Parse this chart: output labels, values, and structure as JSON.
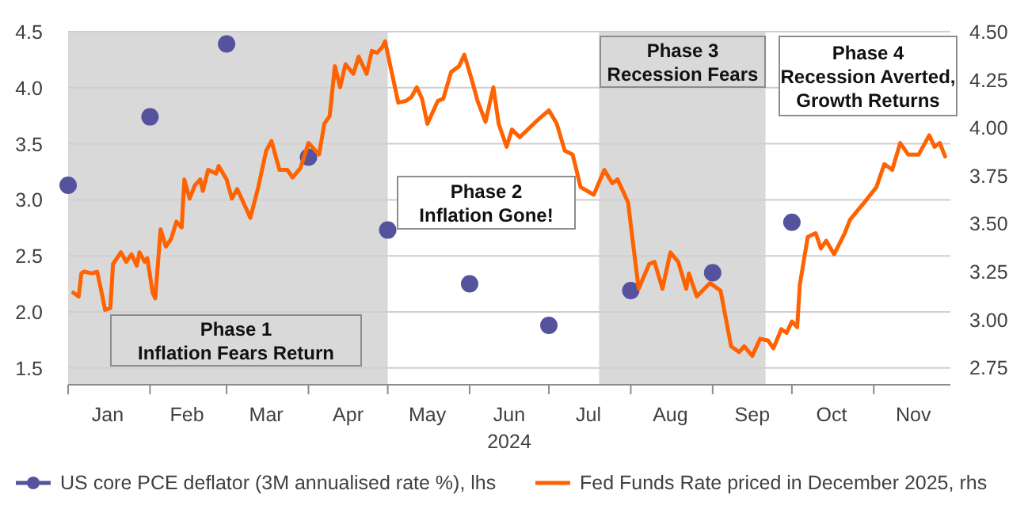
{
  "chart_data": {
    "type": "line",
    "xlabel": "2024",
    "xlim": [
      "2024-01-01",
      "2024-11-30"
    ],
    "xticks": [
      {
        "value": "2024-01-01",
        "label": null
      },
      {
        "value": "2024-01-16",
        "label": "Jan"
      },
      {
        "value": "2024-02-01",
        "label": null
      },
      {
        "value": "2024-02-15",
        "label": "Feb"
      },
      {
        "value": "2024-03-01",
        "label": null
      },
      {
        "value": "2024-03-16",
        "label": "Mar"
      },
      {
        "value": "2024-04-01",
        "label": null
      },
      {
        "value": "2024-04-16",
        "label": "Apr"
      },
      {
        "value": "2024-05-01",
        "label": null
      },
      {
        "value": "2024-05-16",
        "label": "May"
      },
      {
        "value": "2024-06-01",
        "label": null
      },
      {
        "value": "2024-06-16",
        "label": "Jun"
      },
      {
        "value": "2024-07-01",
        "label": null
      },
      {
        "value": "2024-07-16",
        "label": "Jul"
      },
      {
        "value": "2024-08-01",
        "label": null
      },
      {
        "value": "2024-08-16",
        "label": "Aug"
      },
      {
        "value": "2024-09-01",
        "label": null
      },
      {
        "value": "2024-09-16",
        "label": "Sep"
      },
      {
        "value": "2024-10-01",
        "label": null
      },
      {
        "value": "2024-10-16",
        "label": "Oct"
      },
      {
        "value": "2024-11-01",
        "label": null
      },
      {
        "value": "2024-11-16",
        "label": "Nov"
      }
    ],
    "ylim": [
      1.35,
      4.5
    ],
    "yticks": [
      1.5,
      {
        "value": 2,
        "label": "2.0"
      },
      2.5,
      {
        "value": 3,
        "label": "3.0"
      },
      3.5,
      {
        "value": 4,
        "label": "4.0"
      },
      4.5
    ],
    "y2lim": [
      2.66,
      4.5
    ],
    "y2ticks": [
      {
        "value": 2.75,
        "label": "2.75"
      },
      {
        "value": 3,
        "label": "3.00"
      },
      {
        "value": 3.25,
        "label": "3.25"
      },
      {
        "value": 3.5,
        "label": "3.50"
      },
      {
        "value": 3.75,
        "label": "3.75"
      },
      {
        "value": 4,
        "label": "4.00"
      },
      {
        "value": 4.25,
        "label": "4.25"
      },
      {
        "value": 4.5,
        "label": "4.50"
      }
    ],
    "grid": "y",
    "legend": "bottom",
    "bands": [
      {
        "axis": "x",
        "from": "2024-01-01",
        "to": "2024-05-01",
        "label": "Phase 1\nInflation Fears Return",
        "color": "#d9d9d9"
      },
      {
        "axis": "x",
        "from": "2024-07-20",
        "to": "2024-09-21",
        "label": "Phase 3\nRecession Fears",
        "color": "#d9d9d9"
      }
    ],
    "annotations": [
      "Phase 2\nInflation Gone!",
      "Phase 4\nRecession Averted,\nGrowth Returns"
    ],
    "series": [
      {
        "name": "US core PCE deflator (3M annualised rate %), lhs",
        "type": "scatter",
        "marker": "circle",
        "axis": "y",
        "color": "#55529e",
        "x": [
          "2024-01-01",
          "2024-02-01",
          "2024-03-01",
          "2024-04-01",
          "2024-05-01",
          "2024-06-01",
          "2024-07-01",
          "2024-08-01",
          "2024-09-01",
          "2024-10-01"
        ],
        "values": [
          3.13,
          3.74,
          4.39,
          3.38,
          2.73,
          2.25,
          1.88,
          2.19,
          2.35,
          2.8
        ]
      },
      {
        "name": "Fed Funds Rate priced in December 2025, rhs",
        "type": "line",
        "axis": "y2",
        "color": "#ff6200",
        "x": [
          "2024-01-03",
          "2024-01-05",
          "2024-01-06",
          "2024-01-07",
          "2024-01-10",
          "2024-01-12",
          "2024-01-14",
          "2024-01-15",
          "2024-01-17",
          "2024-01-18",
          "2024-01-21",
          "2024-01-23",
          "2024-01-25",
          "2024-01-27",
          "2024-01-28",
          "2024-01-30",
          "2024-01-31",
          "2024-02-02",
          "2024-02-03",
          "2024-02-05",
          "2024-02-07",
          "2024-02-09",
          "2024-02-11",
          "2024-02-13",
          "2024-02-14",
          "2024-02-16",
          "2024-02-18",
          "2024-02-20",
          "2024-02-21",
          "2024-02-23",
          "2024-02-26",
          "2024-02-27",
          "2024-03-01",
          "2024-03-03",
          "2024-03-05",
          "2024-03-07",
          "2024-03-10",
          "2024-03-13",
          "2024-03-16",
          "2024-03-18",
          "2024-03-21",
          "2024-03-24",
          "2024-03-26",
          "2024-03-29",
          "2024-04-01",
          "2024-04-05",
          "2024-04-07",
          "2024-04-09",
          "2024-04-11",
          "2024-04-13",
          "2024-04-15",
          "2024-04-18",
          "2024-04-20",
          "2024-04-23",
          "2024-04-25",
          "2024-04-27",
          "2024-04-29",
          "2024-04-30",
          "2024-05-02",
          "2024-05-05",
          "2024-05-08",
          "2024-05-10",
          "2024-05-12",
          "2024-05-14",
          "2024-05-16",
          "2024-05-20",
          "2024-05-22",
          "2024-05-25",
          "2024-05-28",
          "2024-05-30",
          "2024-06-02",
          "2024-06-04",
          "2024-06-07",
          "2024-06-10",
          "2024-06-12",
          "2024-06-15",
          "2024-06-17",
          "2024-06-20",
          "2024-06-26",
          "2024-07-01",
          "2024-07-04",
          "2024-07-07",
          "2024-07-10",
          "2024-07-13",
          "2024-07-18",
          "2024-07-22",
          "2024-07-25",
          "2024-07-27",
          "2024-07-31",
          "2024-08-02",
          "2024-08-04",
          "2024-08-08",
          "2024-08-10",
          "2024-08-13",
          "2024-08-16",
          "2024-08-19",
          "2024-08-22",
          "2024-08-23",
          "2024-08-26",
          "2024-08-31",
          "2024-09-04",
          "2024-09-08",
          "2024-09-11",
          "2024-09-13",
          "2024-09-16",
          "2024-09-19",
          "2024-09-22",
          "2024-09-24",
          "2024-09-27",
          "2024-09-29",
          "2024-10-01",
          "2024-10-03",
          "2024-10-04",
          "2024-10-07",
          "2024-10-10",
          "2024-10-12",
          "2024-10-14",
          "2024-10-17",
          "2024-10-21",
          "2024-10-23",
          "2024-10-26",
          "2024-10-29",
          "2024-11-02",
          "2024-11-05",
          "2024-11-08",
          "2024-11-11",
          "2024-11-14",
          "2024-11-18",
          "2024-11-22",
          "2024-11-24",
          "2024-11-26",
          "2024-11-28"
        ],
        "values": [
          3.14,
          3.12,
          3.24,
          3.25,
          3.24,
          3.25,
          3.12,
          3.05,
          3.06,
          3.29,
          3.35,
          3.3,
          3.34,
          3.28,
          3.35,
          3.3,
          3.32,
          3.14,
          3.11,
          3.47,
          3.38,
          3.42,
          3.51,
          3.48,
          3.73,
          3.63,
          3.7,
          3.73,
          3.67,
          3.78,
          3.76,
          3.8,
          3.73,
          3.63,
          3.68,
          3.62,
          3.53,
          3.69,
          3.88,
          3.93,
          3.78,
          3.78,
          3.74,
          3.79,
          3.92,
          3.86,
          4.02,
          4.06,
          4.32,
          4.21,
          4.33,
          4.28,
          4.37,
          4.28,
          4.4,
          4.39,
          4.42,
          4.45,
          4.32,
          4.13,
          4.14,
          4.16,
          4.21,
          4.15,
          4.02,
          4.14,
          4.15,
          4.29,
          4.32,
          4.38,
          4.24,
          4.14,
          4.03,
          4.21,
          4.02,
          3.9,
          3.99,
          3.95,
          4.03,
          4.09,
          4.02,
          3.88,
          3.86,
          3.69,
          3.65,
          3.78,
          3.71,
          3.73,
          3.61,
          3.38,
          3.16,
          3.29,
          3.3,
          3.16,
          3.35,
          3.3,
          3.16,
          3.24,
          3.12,
          3.19,
          3.15,
          2.86,
          2.83,
          2.86,
          2.81,
          2.9,
          2.89,
          2.85,
          2.95,
          2.93,
          2.99,
          2.96,
          3.18,
          3.43,
          3.45,
          3.37,
          3.41,
          3.34,
          3.45,
          3.52,
          3.57,
          3.62,
          3.69,
          3.81,
          3.78,
          3.92,
          3.86,
          3.86,
          3.96,
          3.9,
          3.92,
          3.85
        ]
      }
    ]
  }
}
